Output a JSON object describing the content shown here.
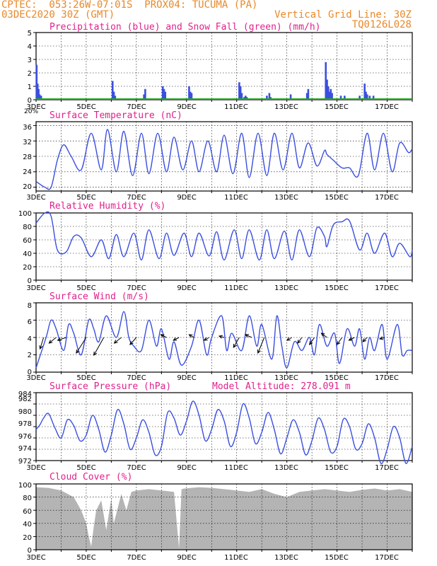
{
  "header": {
    "line1_left": "CPTEC:  053:26W-07:01S  PROX04: TUCUMA (PA)",
    "line2_left": "03DEC2020 30Z (GMT)",
    "line2_right": "Vertical Grid Line: 30Z",
    "line3_right": "TQ0126L028",
    "color": "#e8892a"
  },
  "colors": {
    "title": "#e0208c",
    "series": "#3b4fe0",
    "snow": "#22aa22",
    "cloud": "#b4b4b4",
    "header": "#e8892a"
  },
  "x_labels": [
    "3DEC",
    "5DEC",
    "7DEC",
    "9DEC",
    "11DEC",
    "13DEC",
    "15DEC",
    "17DEC"
  ],
  "panel_stub": "20%",
  "panels": {
    "precip": {
      "title": "Precipitation (blue) and Snow Fall (green) (mm/h)",
      "ticks": [
        "0",
        "1",
        "2",
        "3",
        "4",
        "5"
      ]
    },
    "temp": {
      "title": "Surface Temperature (nC)",
      "ticks": [
        "20",
        "24",
        "28",
        "32",
        "36"
      ]
    },
    "rh": {
      "title": "Relative Humidity (%)",
      "ticks": [
        "0",
        "20",
        "40",
        "60",
        "80",
        "100"
      ]
    },
    "wind": {
      "title": "Surface Wind (m/s)",
      "ticks": [
        "0",
        "2",
        "4",
        "6",
        "8"
      ]
    },
    "pres": {
      "title": "Surface Pressure (hPa)",
      "altitude": "Model Altitude: 278.091 m",
      "ticks": [
        "972",
        "974",
        "976",
        "978",
        "980",
        "982",
        "984"
      ]
    },
    "cloud": {
      "title": "Cloud Cover (%)",
      "ticks": [
        "0",
        "20",
        "40",
        "60",
        "80",
        "100"
      ]
    }
  },
  "chart_data": [
    {
      "type": "bar",
      "name": "precipitation",
      "title": "Precipitation (blue) and Snow Fall (green) (mm/h)",
      "x_unit": "day of December 2020 (UTC)",
      "ylim": [
        0,
        5
      ],
      "series": [
        {
          "name": "Precipitation",
          "x": [
            3.02,
            3.06,
            3.1,
            3.14,
            3.2,
            6.05,
            6.1,
            6.15,
            7.3,
            7.35,
            8.05,
            8.1,
            8.15,
            9.1,
            9.15,
            9.2,
            11.1,
            11.15,
            11.2,
            11.3,
            11.35,
            11.4,
            12.2,
            12.3,
            12.35,
            13.15,
            13.8,
            13.85,
            14.55,
            14.6,
            14.65,
            14.7,
            14.75,
            14.8,
            15.15,
            15.3,
            15.9,
            16.1,
            16.15,
            16.2,
            16.3,
            16.45
          ],
          "values": [
            2.6,
            1.2,
            0.8,
            0.4,
            0.3,
            1.4,
            0.6,
            0.3,
            0.4,
            0.8,
            1.0,
            0.8,
            0.6,
            1.0,
            0.6,
            0.5,
            1.3,
            1.0,
            0.5,
            0.2,
            0.3,
            0.2,
            0.3,
            0.5,
            0.2,
            0.4,
            0.5,
            0.8,
            2.8,
            1.5,
            1.0,
            0.6,
            0.8,
            0.5,
            0.3,
            0.3,
            0.3,
            1.2,
            0.6,
            0.4,
            0.3,
            0.3
          ]
        },
        {
          "name": "Snow Fall",
          "x": [
            3.0,
            18.0
          ],
          "values": [
            0,
            0
          ]
        }
      ]
    },
    {
      "type": "line",
      "name": "temperature",
      "title": "Surface Temperature (nC)",
      "ylim": [
        19,
        37
      ],
      "series": [
        {
          "name": "Temperature",
          "x": [
            3.0,
            3.35,
            3.6,
            3.85,
            4.1,
            4.4,
            4.8,
            5.2,
            5.6,
            5.85,
            6.2,
            6.5,
            6.85,
            7.2,
            7.5,
            7.85,
            8.2,
            8.5,
            8.85,
            9.2,
            9.5,
            9.85,
            10.2,
            10.5,
            10.85,
            11.2,
            11.5,
            11.85,
            12.2,
            12.5,
            12.85,
            13.2,
            13.5,
            13.85,
            14.2,
            14.5,
            14.6,
            14.85,
            15.2,
            15.5,
            15.85,
            16.2,
            16.5,
            16.85,
            17.2,
            17.5,
            17.85,
            18.0
          ],
          "values": [
            21.5,
            20,
            20,
            27,
            31,
            28,
            24.5,
            34,
            24.5,
            35,
            24,
            34.5,
            23,
            34,
            23.5,
            34,
            24,
            33,
            24.5,
            32,
            24,
            32,
            24,
            33.5,
            23.5,
            34,
            22.5,
            34,
            23,
            34,
            24.5,
            34,
            25,
            31.5,
            25.5,
            29.5,
            28.5,
            27,
            25,
            25,
            23,
            34,
            24.5,
            34,
            24,
            31.5,
            29,
            30
          ]
        }
      ]
    },
    {
      "type": "line",
      "name": "relative_humidity",
      "title": "Relative Humidity (%)",
      "ylim": [
        0,
        100
      ],
      "series": [
        {
          "name": "Relative Humidity",
          "x": [
            3.0,
            3.35,
            3.6,
            3.85,
            4.2,
            4.5,
            4.8,
            5.2,
            5.6,
            5.9,
            6.2,
            6.5,
            6.9,
            7.2,
            7.5,
            7.9,
            8.2,
            8.5,
            8.9,
            9.2,
            9.5,
            9.9,
            10.2,
            10.5,
            10.9,
            11.2,
            11.5,
            11.9,
            12.2,
            12.5,
            12.9,
            13.2,
            13.5,
            13.9,
            14.2,
            14.5,
            14.6,
            14.85,
            15.2,
            15.5,
            15.9,
            16.2,
            16.5,
            16.9,
            17.2,
            17.5,
            17.9,
            18.0
          ],
          "values": [
            85,
            100,
            95,
            45,
            42,
            65,
            63,
            35,
            60,
            32,
            68,
            35,
            70,
            30,
            75,
            32,
            70,
            37,
            70,
            35,
            70,
            36,
            72,
            30,
            75,
            32,
            75,
            30,
            75,
            32,
            73,
            30,
            75,
            35,
            78,
            65,
            50,
            82,
            87,
            88,
            45,
            70,
            40,
            70,
            35,
            55,
            35,
            45
          ]
        }
      ]
    },
    {
      "type": "line",
      "name": "surface_wind",
      "title": "Surface Wind (m/s)",
      "ylim": [
        0,
        8
      ],
      "series": [
        {
          "name": "Wind speed",
          "x": [
            3.0,
            3.4,
            3.6,
            3.8,
            4.1,
            4.3,
            4.5,
            4.8,
            5.1,
            5.3,
            5.5,
            5.8,
            6.2,
            6.5,
            6.7,
            6.9,
            7.2,
            7.5,
            7.8,
            8.0,
            8.3,
            8.5,
            8.8,
            9.2,
            9.5,
            9.8,
            10.0,
            10.4,
            10.6,
            10.8,
            11.2,
            11.5,
            11.8,
            12.0,
            12.4,
            12.6,
            12.8,
            13.0,
            13.3,
            13.6,
            13.9,
            14.1,
            14.3,
            14.6,
            14.9,
            15.1,
            15.4,
            15.7,
            15.9,
            16.1,
            16.3,
            16.5,
            16.8,
            17.0,
            17.4,
            17.6,
            17.8,
            18.0
          ],
          "values": [
            0.5,
            4,
            6,
            5,
            2.5,
            5.5,
            4.5,
            2,
            6,
            5,
            3.5,
            6.5,
            4,
            7,
            4,
            3,
            2.5,
            6,
            3,
            5,
            1.5,
            3.5,
            0.8,
            3,
            6,
            2,
            4,
            6.5,
            2.5,
            4.5,
            2.5,
            6.5,
            3,
            5.5,
            1.5,
            6.5,
            3,
            0.5,
            3.5,
            2.5,
            4,
            2,
            5.5,
            3,
            4.5,
            1,
            5,
            3,
            5,
            1.5,
            4,
            2.5,
            5.5,
            1.5,
            5.5,
            2,
            2.5,
            2.5
          ]
        }
      ],
      "vectors": [
        {
          "x": 3.3,
          "dx": -5,
          "dy": 16
        },
        {
          "x": 3.8,
          "dx": -10,
          "dy": 8
        },
        {
          "x": 4.2,
          "dx": -12,
          "dy": 4
        },
        {
          "x": 5.0,
          "dx": -14,
          "dy": 22
        },
        {
          "x": 5.7,
          "dx": -14,
          "dy": 25
        },
        {
          "x": 6.4,
          "dx": -10,
          "dy": 8
        },
        {
          "x": 7.0,
          "dx": -9,
          "dy": 10
        },
        {
          "x": 8.2,
          "dx": -8,
          "dy": -4
        },
        {
          "x": 8.7,
          "dx": -8,
          "dy": 4
        },
        {
          "x": 9.3,
          "dx": -7,
          "dy": -4
        },
        {
          "x": 9.9,
          "dx": -7,
          "dy": 4
        },
        {
          "x": 10.5,
          "dx": -7,
          "dy": -2
        },
        {
          "x": 11.1,
          "dx": -8,
          "dy": 14
        },
        {
          "x": 11.6,
          "dx": -9,
          "dy": -4
        },
        {
          "x": 12.1,
          "dx": -9,
          "dy": 22
        },
        {
          "x": 13.2,
          "dx": -7,
          "dy": 4
        },
        {
          "x": 13.6,
          "dx": -6,
          "dy": 8
        },
        {
          "x": 14.1,
          "dx": -7,
          "dy": 10
        },
        {
          "x": 14.6,
          "dx": -8,
          "dy": -6
        },
        {
          "x": 15.2,
          "dx": -7,
          "dy": 10
        },
        {
          "x": 15.7,
          "dx": -8,
          "dy": 4
        },
        {
          "x": 16.2,
          "dx": -6,
          "dy": 6
        },
        {
          "x": 16.9,
          "dx": -7,
          "dy": 2
        }
      ]
    },
    {
      "type": "line",
      "name": "surface_pressure",
      "title": "Surface Pressure (hPa)",
      "ylim": [
        972,
        984
      ],
      "series": [
        {
          "name": "Pressure",
          "x": [
            3.0,
            3.15,
            3.3,
            3.5,
            3.75,
            4.0,
            4.25,
            4.5,
            4.75,
            5.0,
            5.25,
            5.5,
            5.75,
            6.0,
            6.25,
            6.5,
            6.75,
            7.0,
            7.25,
            7.5,
            7.75,
            8.0,
            8.25,
            8.5,
            8.75,
            9.0,
            9.25,
            9.5,
            9.75,
            10.0,
            10.25,
            10.5,
            10.75,
            11.0,
            11.25,
            11.5,
            11.75,
            12.0,
            12.25,
            12.5,
            12.75,
            13.0,
            13.25,
            13.5,
            13.75,
            14.0,
            14.25,
            14.5,
            14.75,
            15.0,
            15.25,
            15.5,
            15.75,
            16.0,
            16.25,
            16.5,
            16.75,
            17.0,
            17.25,
            17.5,
            17.75,
            18.0
          ],
          "values": [
            977.5,
            978.3,
            979.5,
            980.3,
            977.8,
            976,
            979.2,
            978.2,
            975.5,
            976.5,
            980,
            977.5,
            973.5,
            976.5,
            981,
            978.5,
            974,
            976,
            979.2,
            977,
            973,
            974.5,
            980.5,
            979.5,
            976.5,
            979,
            982.5,
            980,
            975.5,
            977.5,
            981,
            979,
            974.5,
            977,
            982,
            979.5,
            975,
            977,
            980.5,
            977.5,
            973.2,
            976,
            979.2,
            977,
            973,
            975.5,
            979.5,
            977.5,
            973.5,
            974.5,
            979.3,
            978,
            974,
            975,
            978.5,
            976,
            971.5,
            974,
            978,
            976,
            971.5,
            974.5
          ]
        }
      ]
    },
    {
      "type": "area",
      "name": "cloud_cover",
      "title": "Cloud Cover (%)",
      "ylim": [
        0,
        100
      ],
      "series": [
        {
          "name": "Cloud Cover",
          "x": [
            3.0,
            3.5,
            4.0,
            4.5,
            4.8,
            5.0,
            5.1,
            5.2,
            5.3,
            5.4,
            5.6,
            5.8,
            6.0,
            6.1,
            6.2,
            6.4,
            6.6,
            6.8,
            7.0,
            7.5,
            8.0,
            8.5,
            8.7,
            8.8,
            8.9,
            9.5,
            10.0,
            10.5,
            11.0,
            11.5,
            12.0,
            12.5,
            13.0,
            13.5,
            14.0,
            14.5,
            15.0,
            15.5,
            16.0,
            16.5,
            17.0,
            17.5,
            18.0
          ],
          "values": [
            95,
            94,
            90,
            80,
            60,
            40,
            20,
            5,
            35,
            60,
            75,
            30,
            78,
            40,
            55,
            85,
            60,
            88,
            90,
            92,
            90,
            88,
            2,
            92,
            93,
            95,
            94,
            92,
            90,
            88,
            92,
            85,
            80,
            88,
            90,
            92,
            90,
            88,
            91,
            93,
            90,
            92,
            88
          ]
        }
      ]
    }
  ]
}
